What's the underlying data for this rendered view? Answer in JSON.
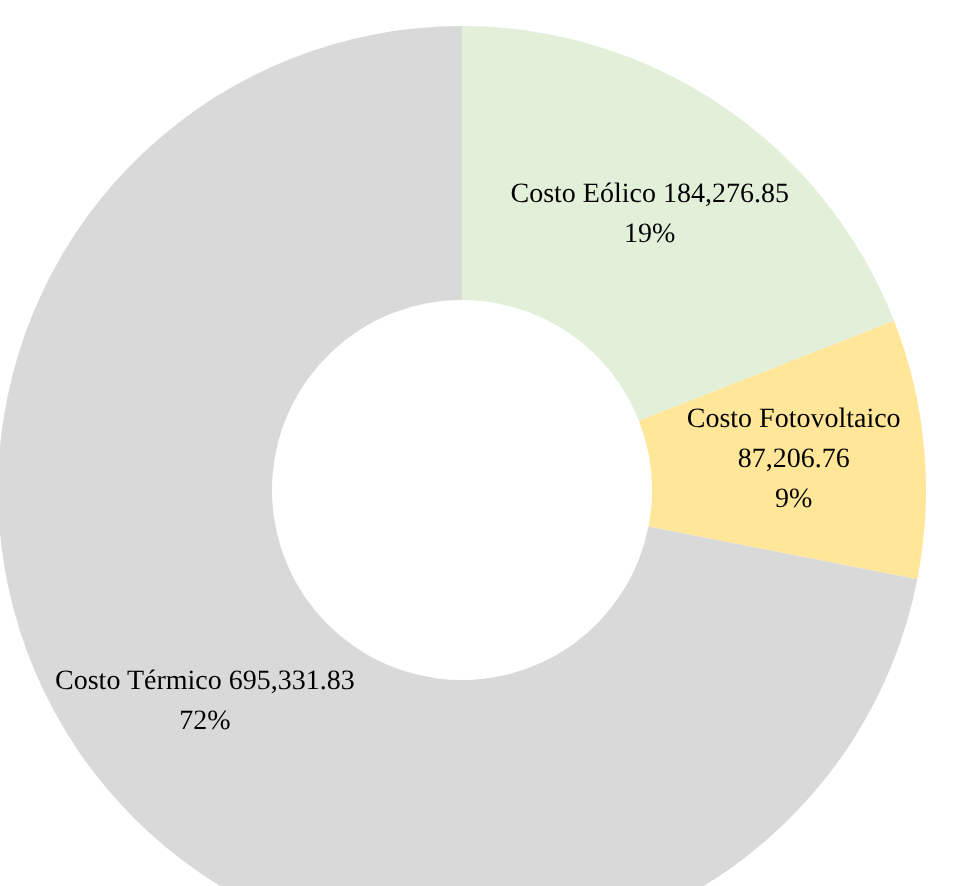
{
  "chart_data": {
    "type": "donut",
    "categories": [
      "Costo Eólico",
      "Costo Fotovoltaico",
      "Costo Térmico"
    ],
    "values": [
      184276.85,
      87206.76,
      695331.83
    ],
    "value_labels": [
      "184,276.85\n19%",
      "87,206.76\n9%",
      "695,331.83\n72%"
    ],
    "colors": [
      "#e2efd9",
      "#ffe699",
      "#d9d9d9"
    ],
    "legend": false
  }
}
